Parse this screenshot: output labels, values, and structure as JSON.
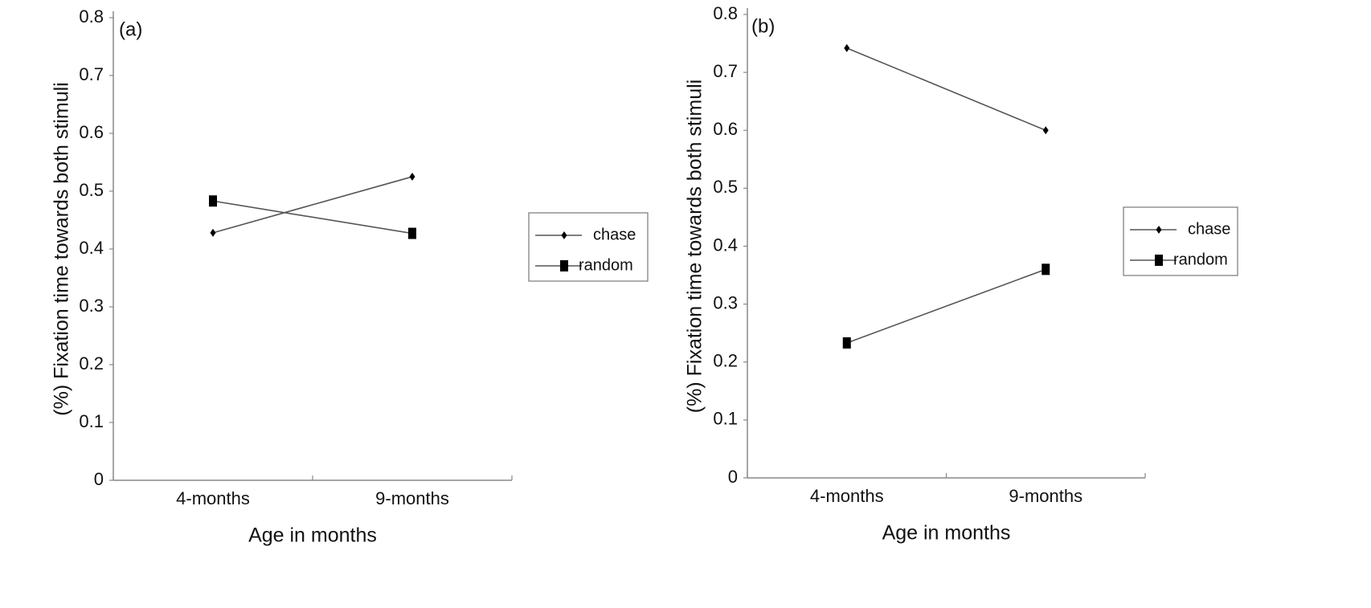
{
  "chart_data": [
    {
      "type": "line",
      "panel_label": "(a)",
      "x_label": "Age in months",
      "y_label": "(%) Fixation time towards both stimuli",
      "categories": [
        "4-months",
        "9-months"
      ],
      "series": [
        {
          "name": "chase",
          "color": "#555555",
          "marker": "diamond",
          "values": [
            0.428,
            0.525
          ]
        },
        {
          "name": "random",
          "color": "#555555",
          "marker": "square",
          "values": [
            0.483,
            0.427
          ]
        }
      ],
      "ylim": [
        0,
        0.8
      ],
      "yticks": [
        0,
        0.1,
        0.2,
        0.3,
        0.4,
        0.5,
        0.6,
        0.7,
        0.8
      ],
      "legend": "right"
    },
    {
      "type": "line",
      "panel_label": "(b)",
      "x_label": "Age in months",
      "y_label": "(%) Fixation time towards both stimuli",
      "categories": [
        "4-months",
        "9-months"
      ],
      "series": [
        {
          "name": "chase",
          "color": "#555555",
          "marker": "diamond",
          "values": [
            0.742,
            0.6
          ]
        },
        {
          "name": "random",
          "color": "#555555",
          "marker": "square",
          "values": [
            0.233,
            0.36
          ]
        }
      ],
      "ylim": [
        0,
        0.8
      ],
      "yticks": [
        0,
        0.1,
        0.2,
        0.3,
        0.4,
        0.5,
        0.6,
        0.7,
        0.8
      ],
      "legend": "right"
    }
  ]
}
